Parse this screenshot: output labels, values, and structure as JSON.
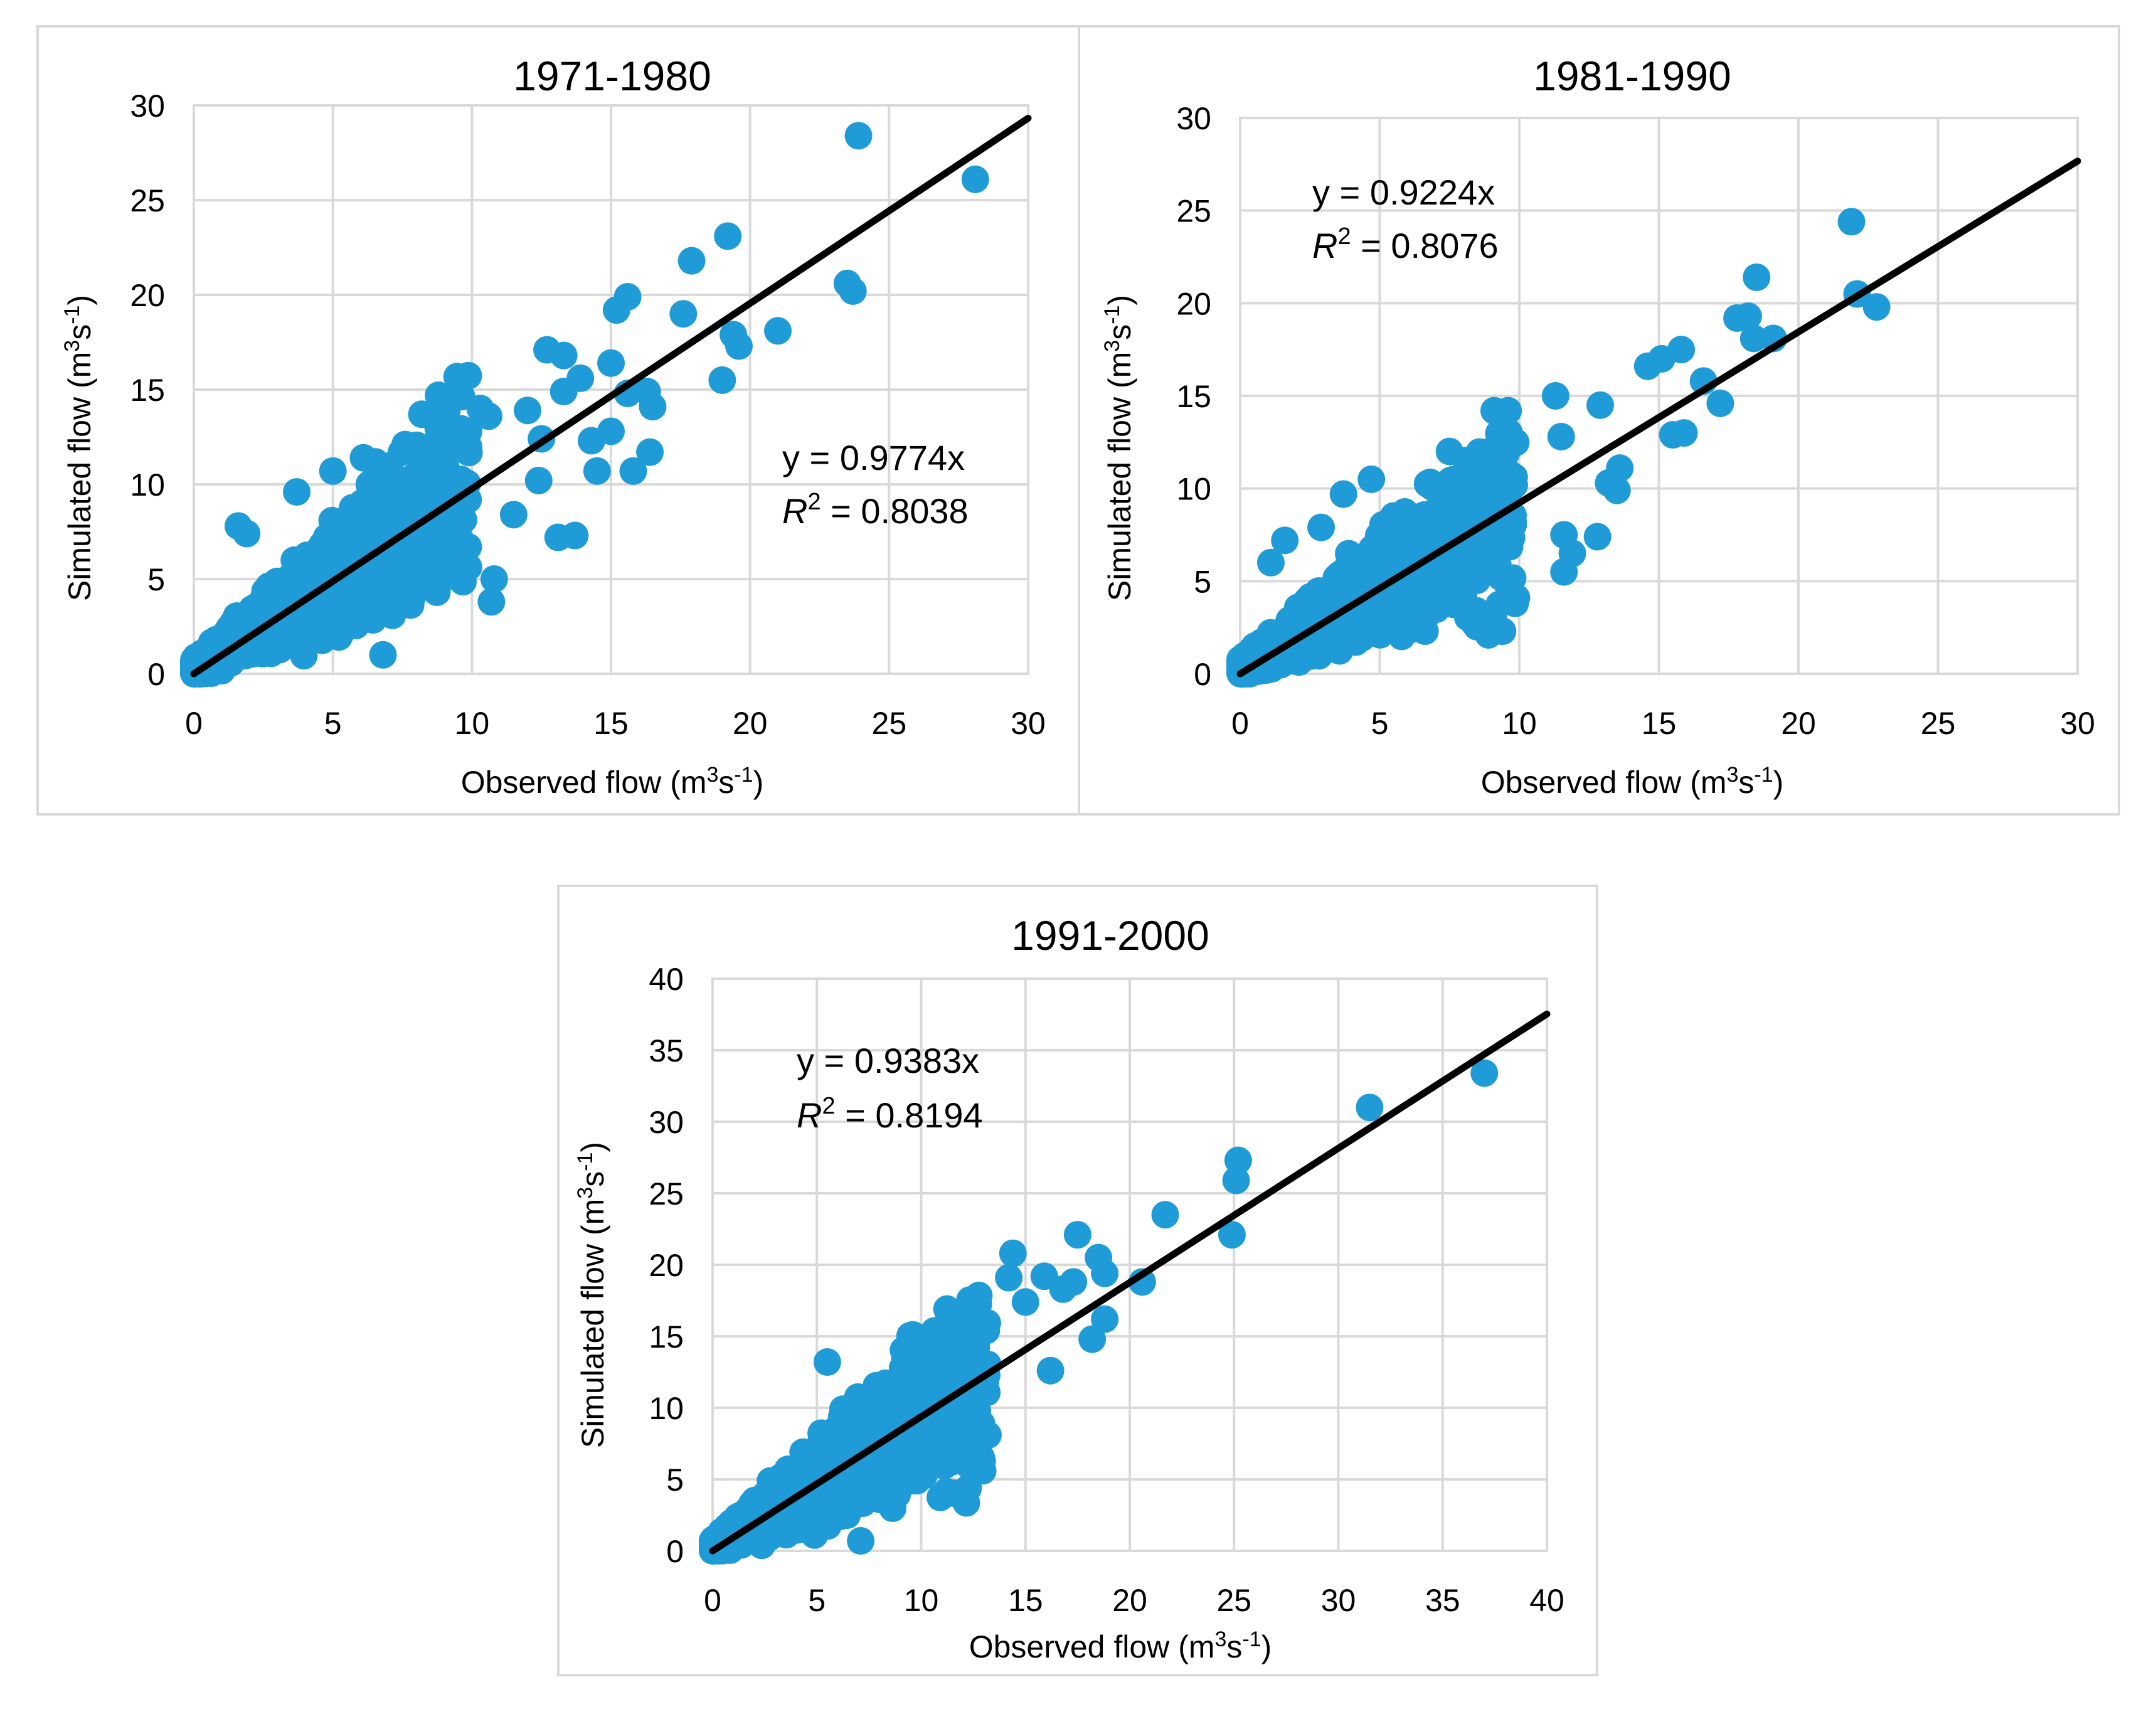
{
  "colors": {
    "marker": "#1f9bd7",
    "trendline": "#000000",
    "grid": "#d9d9d9"
  },
  "chart_data": [
    {
      "type": "scatter",
      "title": "1971-1980",
      "xlabel": "Observed flow",
      "ylabel": "Simulated flow",
      "unit_base": "(m",
      "unit_sup1": "3",
      "unit_mid": "s",
      "unit_sup2": "-1",
      "unit_end": ")",
      "xlim": [
        0,
        30
      ],
      "ylim": [
        0,
        30
      ],
      "xticks": [
        "0",
        "5",
        "10",
        "15",
        "20",
        "25",
        "30"
      ],
      "yticks": [
        "0",
        "5",
        "10",
        "15",
        "20",
        "25",
        "30"
      ],
      "equation": "y = 0.9774x",
      "r2_symbol": "R",
      "r2_exp": "2",
      "r2_value": " = 0.8038",
      "slope": 0.9774,
      "legend_position": "right-middle",
      "points": [
        [
          23.9,
          28.4
        ],
        [
          28.1,
          26.1
        ],
        [
          19.2,
          23.1
        ],
        [
          17.9,
          21.8
        ],
        [
          23.5,
          20.6
        ],
        [
          23.7,
          20.2
        ],
        [
          15.6,
          19.9
        ],
        [
          15.2,
          19.2
        ],
        [
          17.6,
          19.0
        ],
        [
          19.4,
          17.9
        ],
        [
          21.0,
          18.1
        ],
        [
          19.6,
          17.3
        ],
        [
          12.7,
          17.1
        ],
        [
          13.3,
          16.8
        ],
        [
          15.0,
          16.4
        ],
        [
          13.9,
          15.6
        ],
        [
          19.0,
          15.5
        ],
        [
          16.3,
          14.9
        ],
        [
          15.6,
          14.8
        ],
        [
          16.5,
          14.1
        ],
        [
          13.3,
          14.9
        ],
        [
          8.8,
          14.7
        ],
        [
          10.3,
          14.0
        ],
        [
          12.0,
          13.9
        ],
        [
          10.6,
          13.6
        ],
        [
          8.2,
          13.7
        ],
        [
          7.6,
          12.1
        ],
        [
          9.5,
          12.2
        ],
        [
          12.5,
          12.4
        ],
        [
          14.3,
          12.3
        ],
        [
          15.0,
          12.8
        ],
        [
          16.4,
          11.7
        ],
        [
          14.5,
          10.7
        ],
        [
          15.8,
          10.7
        ],
        [
          12.4,
          10.2
        ],
        [
          9.7,
          9.8
        ],
        [
          11.5,
          8.4
        ],
        [
          13.1,
          7.2
        ],
        [
          13.7,
          7.3
        ],
        [
          10.8,
          5.0
        ],
        [
          10.7,
          3.8
        ],
        [
          6.8,
          1.0
        ],
        [
          1.6,
          7.8
        ],
        [
          1.9,
          7.4
        ],
        [
          5.0,
          10.7
        ],
        [
          3.7,
          9.6
        ],
        [
          6.1,
          11.4
        ]
      ],
      "cloud": [
        0,
        0,
        0,
        0,
        0
      ]
    },
    {
      "type": "scatter",
      "title": "1981-1990",
      "xlabel": "Observed flow",
      "ylabel": "Simulated flow",
      "unit_base": "(m",
      "unit_sup1": "3",
      "unit_mid": "s",
      "unit_sup2": "-1",
      "unit_end": ")",
      "xlim": [
        0,
        30
      ],
      "ylim": [
        0,
        30
      ],
      "xticks": [
        "0",
        "5",
        "10",
        "15",
        "20",
        "25",
        "30"
      ],
      "yticks": [
        "0",
        "5",
        "10",
        "15",
        "20",
        "25",
        "30"
      ],
      "equation": "y = 0.9224x",
      "r2_symbol": "R",
      "r2_exp": "2",
      "r2_value": " = 0.8076",
      "slope": 0.9224,
      "legend_position": "top-left",
      "points": [
        [
          21.9,
          24.4
        ],
        [
          18.5,
          21.4
        ],
        [
          22.1,
          20.5
        ],
        [
          22.8,
          19.8
        ],
        [
          17.8,
          19.2
        ],
        [
          18.2,
          19.3
        ],
        [
          19.1,
          18.1
        ],
        [
          18.4,
          18.1
        ],
        [
          15.8,
          17.5
        ],
        [
          15.1,
          17.0
        ],
        [
          14.6,
          16.6
        ],
        [
          16.6,
          15.8
        ],
        [
          17.2,
          14.6
        ],
        [
          15.9,
          13.0
        ],
        [
          15.5,
          12.9
        ],
        [
          11.3,
          15.0
        ],
        [
          12.9,
          14.5
        ],
        [
          9.1,
          14.2
        ],
        [
          9.6,
          14.2
        ],
        [
          11.5,
          12.8
        ],
        [
          13.6,
          11.1
        ],
        [
          13.2,
          10.3
        ],
        [
          13.5,
          9.9
        ],
        [
          12.8,
          7.4
        ],
        [
          11.6,
          7.5
        ],
        [
          11.9,
          6.5
        ],
        [
          11.6,
          5.5
        ],
        [
          9.9,
          4.1
        ],
        [
          9.4,
          2.3
        ],
        [
          8.9,
          2.1
        ],
        [
          7.5,
          12.0
        ],
        [
          4.7,
          10.5
        ],
        [
          3.7,
          9.7
        ],
        [
          2.9,
          7.9
        ],
        [
          1.6,
          7.2
        ],
        [
          1.1,
          6.0
        ]
      ],
      "cloud": [
        0,
        0,
        0,
        0,
        0
      ]
    },
    {
      "type": "scatter",
      "title": "1991-2000",
      "xlabel": "Observed flow",
      "ylabel": "Simulated flow",
      "unit_base": "(m",
      "unit_sup1": "3",
      "unit_mid": "s",
      "unit_sup2": "-1",
      "unit_end": ")",
      "xlim": [
        0,
        40
      ],
      "ylim": [
        0,
        40
      ],
      "xticks": [
        "0",
        "5",
        "10",
        "15",
        "20",
        "25",
        "30",
        "35",
        "40"
      ],
      "yticks": [
        "0",
        "5",
        "10",
        "15",
        "20",
        "25",
        "30",
        "35",
        "40"
      ],
      "equation": "y = 0.9383x",
      "r2_symbol": "R",
      "r2_exp": "2",
      "r2_value": " = 0.8194",
      "slope": 0.9383,
      "legend_position": "top-left",
      "points": [
        [
          37.0,
          33.4
        ],
        [
          31.5,
          31.0
        ],
        [
          25.2,
          27.3
        ],
        [
          25.1,
          25.9
        ],
        [
          24.9,
          22.1
        ],
        [
          21.7,
          23.5
        ],
        [
          17.5,
          22.1
        ],
        [
          18.5,
          20.5
        ],
        [
          20.6,
          18.8
        ],
        [
          18.8,
          19.4
        ],
        [
          14.4,
          20.8
        ],
        [
          14.2,
          19.1
        ],
        [
          15.9,
          19.2
        ],
        [
          16.8,
          18.3
        ],
        [
          17.3,
          18.8
        ],
        [
          15.0,
          17.4
        ],
        [
          18.8,
          16.2
        ],
        [
          18.2,
          14.8
        ],
        [
          16.2,
          12.6
        ],
        [
          12.6,
          16.1
        ],
        [
          11.2,
          15.8
        ],
        [
          9.6,
          15.1
        ],
        [
          13.2,
          8.1
        ],
        [
          11.7,
          6.3
        ],
        [
          5.5,
          13.2
        ],
        [
          7.1,
          0.7
        ]
      ],
      "cloud": [
        0,
        0,
        0,
        0,
        0
      ]
    }
  ]
}
